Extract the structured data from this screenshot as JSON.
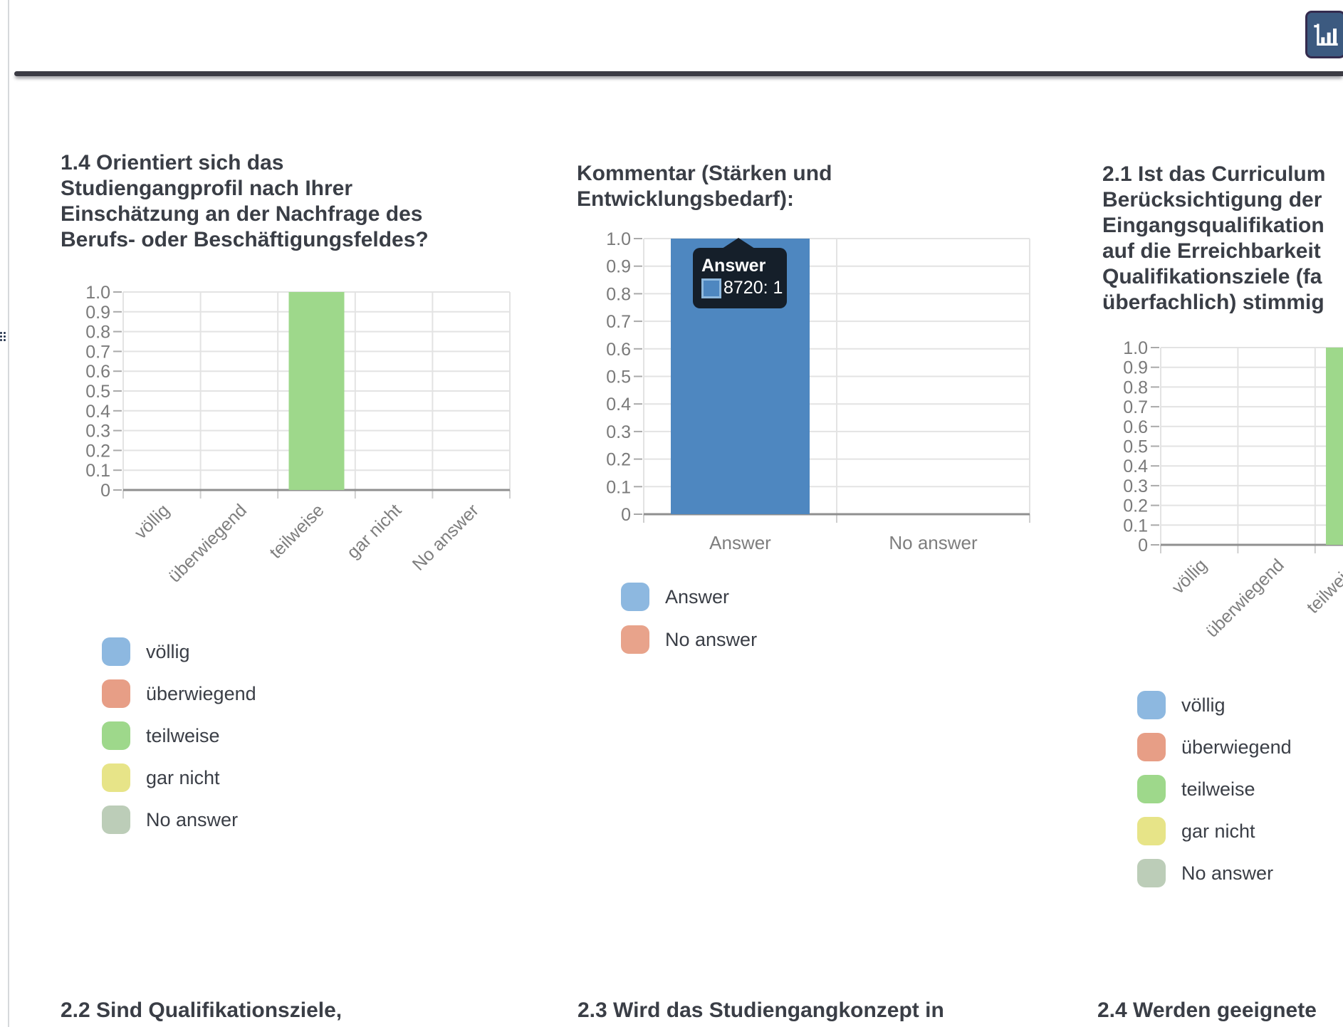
{
  "header": {
    "chart_button_icon": "bar-chart-icon"
  },
  "chart_data": [
    {
      "type": "bar",
      "title": "1.4 Orientiert sich das Studiengangprofil nach Ihrer Einschätzung an der Nachfrage des Berufs- oder Beschäftigungsfeldes?",
      "title_lines": [
        "1.4 Orientiert sich das",
        "Studiengangprofil nach Ihrer",
        "Einschätzung an der Nachfrage des",
        "Berufs- oder Beschäftigungsfeldes?"
      ],
      "categories": [
        "völlig",
        "überwiegend",
        "teilweise",
        "gar nicht",
        "No answer"
      ],
      "values": [
        0,
        0,
        1,
        0,
        0
      ],
      "bar_colors": [
        "#8db8e0",
        "#e79e86",
        "#9ed88b",
        "#e7e488",
        "#bccdb8"
      ],
      "xlabel": "",
      "ylabel": "",
      "ylim": [
        0,
        1
      ],
      "ytick_step": 0.1,
      "grid": "on",
      "legend_position": "below",
      "legend": [
        {
          "label": "völlig",
          "color": "#8db8e0"
        },
        {
          "label": "überwiegend",
          "color": "#e79e86"
        },
        {
          "label": "teilweise",
          "color": "#9ed88b"
        },
        {
          "label": "gar nicht",
          "color": "#e7e488"
        },
        {
          "label": "No answer",
          "color": "#bccdb8"
        }
      ]
    },
    {
      "type": "bar",
      "title": "Kommentar (Stärken und Entwicklungsbedarf):",
      "title_lines": [
        "Kommentar (Stärken und",
        "Entwicklungsbedarf):"
      ],
      "categories": [
        "Answer",
        "No answer"
      ],
      "values": [
        1,
        0
      ],
      "bar_colors": [
        "#4e87c0",
        "#e8a38b"
      ],
      "xlabel": "",
      "ylabel": "",
      "ylim": [
        0,
        1
      ],
      "ytick_step": 0.1,
      "grid": "on",
      "legend_position": "below",
      "legend": [
        {
          "label": "Answer",
          "color": "#8db8e0"
        },
        {
          "label": "No answer",
          "color": "#e8a38b"
        }
      ],
      "tooltip": {
        "title": "Answer",
        "swatch_color": "#4e87c0",
        "value_text": "8720: 1"
      }
    },
    {
      "type": "bar",
      "title": "2.1 Ist das Curriculum Berücksichtigung der Eingangsqualifikation auf die Erreichbarkeit Qualifikationsziele (fachlich überfachlich) stimmig",
      "title_lines": [
        "2.1 Ist das Curriculum",
        "Berücksichtigung der",
        "Eingangsqualifikation",
        "auf die Erreichbarkeit",
        "Qualifikationsziele (fa",
        "überfachlich) stimmig"
      ],
      "categories": [
        "völlig",
        "überwiegend",
        "teilweise",
        "gar nicht",
        "No answer"
      ],
      "values": [
        0,
        0,
        1,
        0,
        0
      ],
      "bar_colors": [
        "#8db8e0",
        "#e79e86",
        "#9ed88b",
        "#e7e488",
        "#bccdb8"
      ],
      "xlabel": "",
      "ylabel": "",
      "ylim": [
        0,
        1
      ],
      "ytick_step": 0.1,
      "grid": "on",
      "legend_position": "below",
      "legend": [
        {
          "label": "völlig",
          "color": "#8db8e0"
        },
        {
          "label": "überwiegend",
          "color": "#e79e86"
        },
        {
          "label": "teilweise",
          "color": "#9ed88b"
        },
        {
          "label": "gar nicht",
          "color": "#e7e488"
        },
        {
          "label": "No answer",
          "color": "#bccdb8"
        }
      ]
    }
  ],
  "footer": {
    "headings": [
      "2.2 Sind Qualifikationsziele,",
      "2.3 Wird das Studiengangkonzept in",
      "2.4 Werden geeignete"
    ]
  }
}
